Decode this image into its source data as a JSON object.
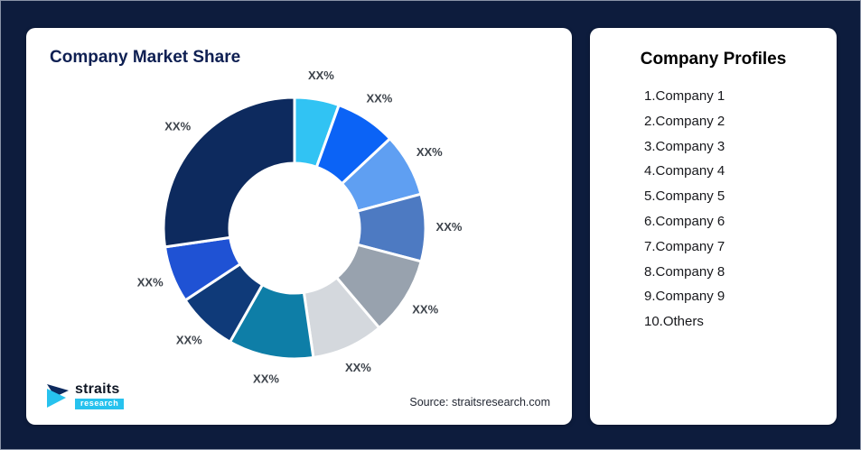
{
  "brand": {
    "accent": "#27c2ee",
    "navy": "#0d2a5e",
    "page_bg": "#0d1c3d"
  },
  "left_card": {
    "title": "Company Market Share",
    "source": "Source: straitsresearch.com",
    "logo": {
      "name": "straits",
      "sub": "research"
    }
  },
  "right_card": {
    "title": "Company Profiles",
    "items": [
      "1.Company 1",
      "2.Company 2",
      "3.Company 3",
      "4.Company 4",
      "5.Company 5",
      "6.Company 6",
      "7.Company 7",
      "8.Company 8",
      "9.Company 9",
      "10.Others"
    ]
  },
  "chart_data": {
    "type": "pie",
    "subtype": "donut",
    "title": "Company Market Share",
    "categories": [
      "Company 1",
      "Company 2",
      "Company 3",
      "Company 4",
      "Company 5",
      "Company 6",
      "Company 7",
      "Company 8",
      "Company 9",
      "Others"
    ],
    "values": [
      5.5,
      7.5,
      7.8,
      8.3,
      9.7,
      8.9,
      10.5,
      7.5,
      7.0,
      27.3
    ],
    "data_labels": [
      "XX%",
      "XX%",
      "XX%",
      "XX%",
      "XX%",
      "XX%",
      "XX%",
      "XX%",
      "XX%",
      "XX%"
    ],
    "colors": [
      "#31c3f3",
      "#0b63f6",
      "#5f9ff2",
      "#4d7ac2",
      "#98a2ae",
      "#d4d8dd",
      "#0e7ea7",
      "#0f3a79",
      "#1f52d4",
      "#0d2a5e"
    ],
    "start_angle_deg": -90,
    "direction": "clockwise",
    "inner_radius_ratio": 0.5,
    "legend": "none",
    "note_labels_are_placeholders": "XX%"
  }
}
